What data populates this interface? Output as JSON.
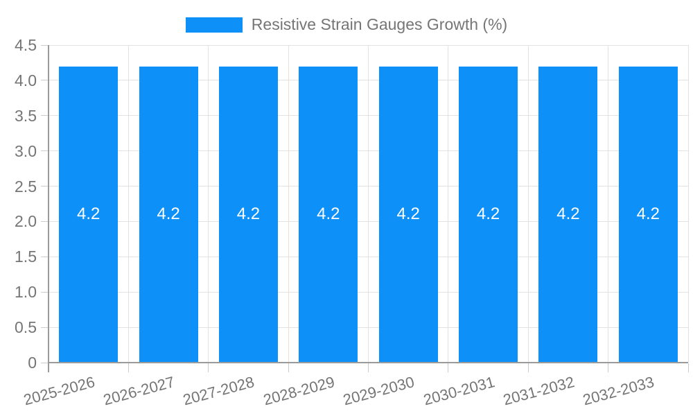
{
  "legend": {
    "label": "Resistive Strain Gauges Growth (%)"
  },
  "chart_data": {
    "type": "bar",
    "title": "Resistive Strain Gauges Growth (%)",
    "categories": [
      "2025-2026",
      "2026-2027",
      "2027-2028",
      "2028-2029",
      "2029-2030",
      "2030-2031",
      "2031-2032",
      "2032-2033"
    ],
    "series": [
      {
        "name": "Resistive Strain Gauges Growth (%)",
        "values": [
          4.2,
          4.2,
          4.2,
          4.2,
          4.2,
          4.2,
          4.2,
          4.2
        ],
        "labels": [
          "4.2",
          "4.2",
          "4.2",
          "4.2",
          "4.2",
          "4.2",
          "4.2",
          "4.2"
        ]
      }
    ],
    "xlabel": "",
    "ylabel": "",
    "ylim": [
      0,
      4.5
    ],
    "ytick_step": 0.5,
    "ytick_labels": [
      "0",
      "0.5",
      "1.0",
      "1.5",
      "2.0",
      "2.5",
      "3.0",
      "3.5",
      "4.0",
      "4.5"
    ],
    "grid": true,
    "legend_position": "top",
    "colors": {
      "bar": "#0d90f8",
      "grid": "#e2e2e2",
      "axis": "#9a9a9a",
      "tick": "#cccccc",
      "text": "#757575",
      "bar_label": "#ffffff",
      "background": "#ffffff"
    }
  }
}
